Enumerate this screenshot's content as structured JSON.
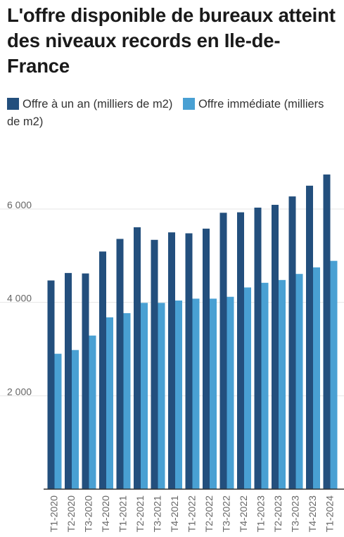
{
  "title": "L'offre disponible de bureaux atteint des niveaux records en Ile-de-France",
  "colors": {
    "series1": "#234f7d",
    "series2": "#49a0d3",
    "grid": "#e6e6e6",
    "axis": "#333333"
  },
  "chart_data": {
    "type": "bar",
    "title": "L'offre disponible de bureaux atteint des niveaux records en Ile-de-France",
    "legend_position": "top-left",
    "grid": true,
    "ylim": [
      0,
      7000
    ],
    "y_ticks": [
      2000,
      4000,
      6000
    ],
    "y_tick_labels": [
      "2 000",
      "4 000",
      "6 000"
    ],
    "categories": [
      "T1-2020",
      "T2-2020",
      "T3-2020",
      "T4-2020",
      "T1-2021",
      "T2-2021",
      "T3-2021",
      "T4-2021",
      "T1-2022",
      "T2-2022",
      "T3-2022",
      "T4-2022",
      "T1-2023",
      "T2-2023",
      "T3-2023",
      "T4-2023",
      "T1-2024"
    ],
    "series": [
      {
        "name": "Offre à un an (milliers de m2)",
        "values": [
          4470,
          4630,
          4620,
          5090,
          5360,
          5610,
          5340,
          5500,
          5480,
          5580,
          5920,
          5930,
          6030,
          6090,
          6270,
          6500,
          6740
        ]
      },
      {
        "name": "Offre immédiate (milliers de m2)",
        "values": [
          2900,
          2980,
          3290,
          3680,
          3770,
          3990,
          3990,
          4040,
          4080,
          4080,
          4120,
          4320,
          4420,
          4480,
          4610,
          4750,
          4890
        ]
      }
    ]
  }
}
